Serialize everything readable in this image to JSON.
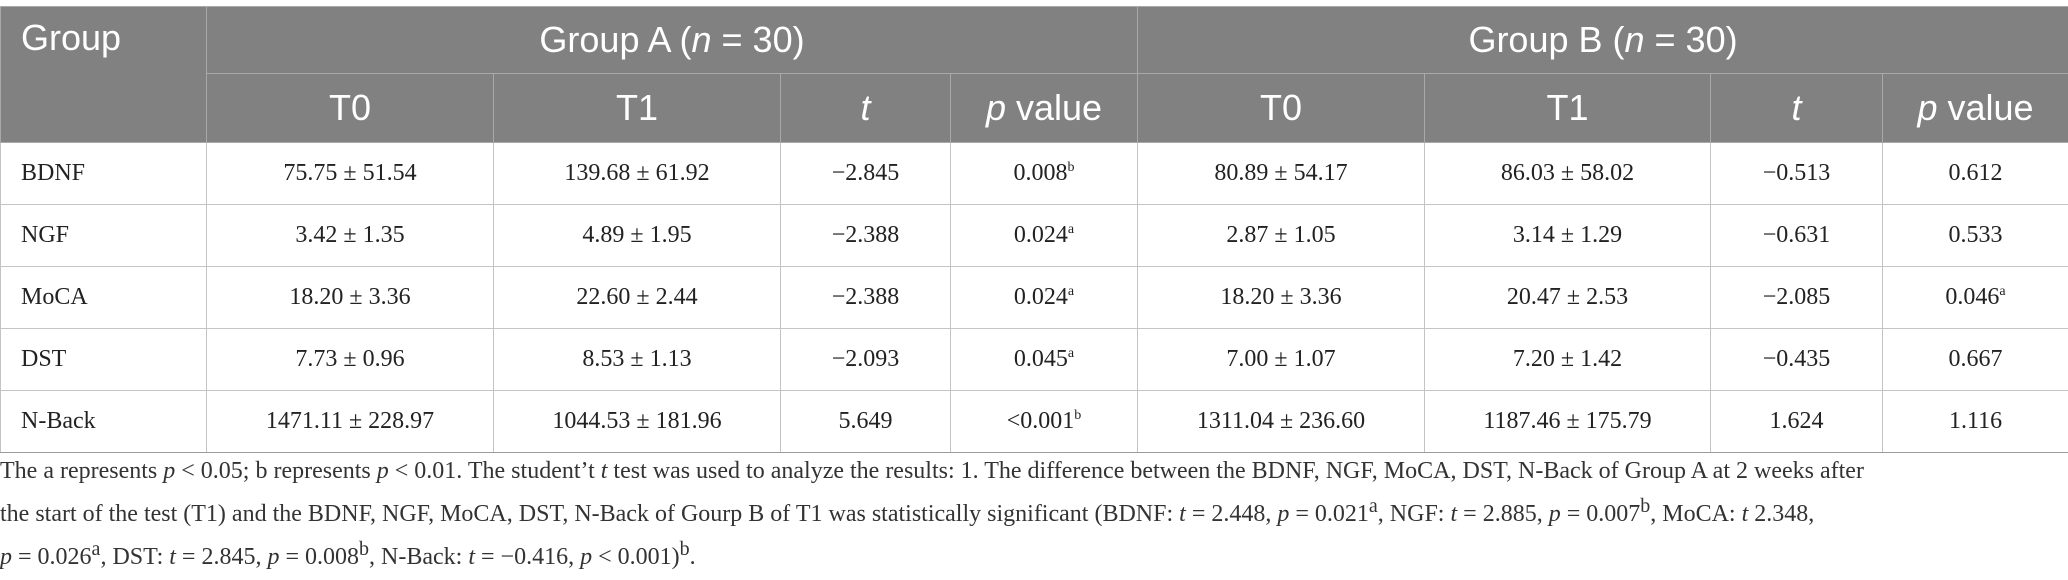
{
  "table": {
    "header": {
      "group_label": "Group",
      "group_a": {
        "name": "Group A (",
        "n": "n",
        "eq": " = 30)"
      },
      "group_b": {
        "name": "Group B (",
        "n": "n",
        "eq": " = 30)"
      },
      "t0": "T0",
      "t1": "T1",
      "t": "t",
      "p": "p",
      "value": " value"
    },
    "rows": [
      {
        "label": "BDNF",
        "a_t0": "75.75 ± 51.54",
        "a_t1": "139.68 ± 61.92",
        "a_t": "−2.845",
        "a_p": "0.008",
        "a_p_sup": "b",
        "b_t0": "80.89 ± 54.17",
        "b_t1": "86.03 ± 58.02",
        "b_t": "−0.513",
        "b_p": "0.612",
        "b_p_sup": ""
      },
      {
        "label": "NGF",
        "a_t0": "3.42 ± 1.35",
        "a_t1": "4.89 ± 1.95",
        "a_t": "−2.388",
        "a_p": "0.024",
        "a_p_sup": "a",
        "b_t0": "2.87 ± 1.05",
        "b_t1": "3.14 ± 1.29",
        "b_t": "−0.631",
        "b_p": "0.533",
        "b_p_sup": ""
      },
      {
        "label": "MoCA",
        "a_t0": "18.20 ± 3.36",
        "a_t1": "22.60 ± 2.44",
        "a_t": "−2.388",
        "a_p": "0.024",
        "a_p_sup": "a",
        "b_t0": "18.20 ± 3.36",
        "b_t1": "20.47 ± 2.53",
        "b_t": "−2.085",
        "b_p": "0.046",
        "b_p_sup": "a"
      },
      {
        "label": "DST",
        "a_t0": "7.73 ± 0.96",
        "a_t1": "8.53 ± 1.13",
        "a_t": "−2.093",
        "a_p": "0.045",
        "a_p_sup": "a",
        "b_t0": "7.00 ± 1.07",
        "b_t1": "7.20 ± 1.42",
        "b_t": "−0.435",
        "b_p": "0.667",
        "b_p_sup": ""
      },
      {
        "label": "N-Back",
        "a_t0": "1471.11 ± 228.97",
        "a_t1": "1044.53 ± 181.96",
        "a_t": "5.649",
        "a_p": "<0.001",
        "a_p_sup": "b",
        "b_t0": "1311.04 ± 236.60",
        "b_t1": "1187.46 ± 175.79",
        "b_t": "1.624",
        "b_p": "1.116",
        "b_p_sup": ""
      }
    ]
  },
  "footnote": {
    "line1": {
      "s1": "The a represents ",
      "p1": "p",
      "s2": " < 0.05; b represents ",
      "p2": "p",
      "s3": " < 0.01. The student’t ",
      "t1": "t",
      "s4": " test was used to analyze the results: 1. The difference between the BDNF, NGF, MoCA, DST, N-Back of Group A at 2 weeks after"
    },
    "line2": {
      "s1": "the start of the test (T1) and the BDNF, NGF, MoCA, DST, N-Back of Gourp B of T1 was statistically significant (BDNF: ",
      "t1": "t",
      "s2": " = 2.448, ",
      "p1": "p",
      "s3": " = 0.021",
      "sup1": "a",
      "s4": ", NGF: ",
      "t2": "t",
      "s5": " = 2.885, ",
      "p2": "p",
      "s6": " = 0.007",
      "sup2": "b",
      "s7": ", MoCA: ",
      "t3": "t",
      "s8": " 2.348,"
    },
    "line3": {
      "p1": "p",
      "s1": " = 0.026",
      "sup1": "a",
      "s2": ", DST: ",
      "t1": "t",
      "s3": " = 2.845, ",
      "p2": "p",
      "s4": " = 0.008",
      "sup2": "b",
      "s5": ", N-Back: ",
      "t2": "t",
      "s6": " = −0.416, ",
      "p3": "p",
      "s7": " < 0.001)",
      "sup3": "b",
      "s8": "."
    }
  }
}
